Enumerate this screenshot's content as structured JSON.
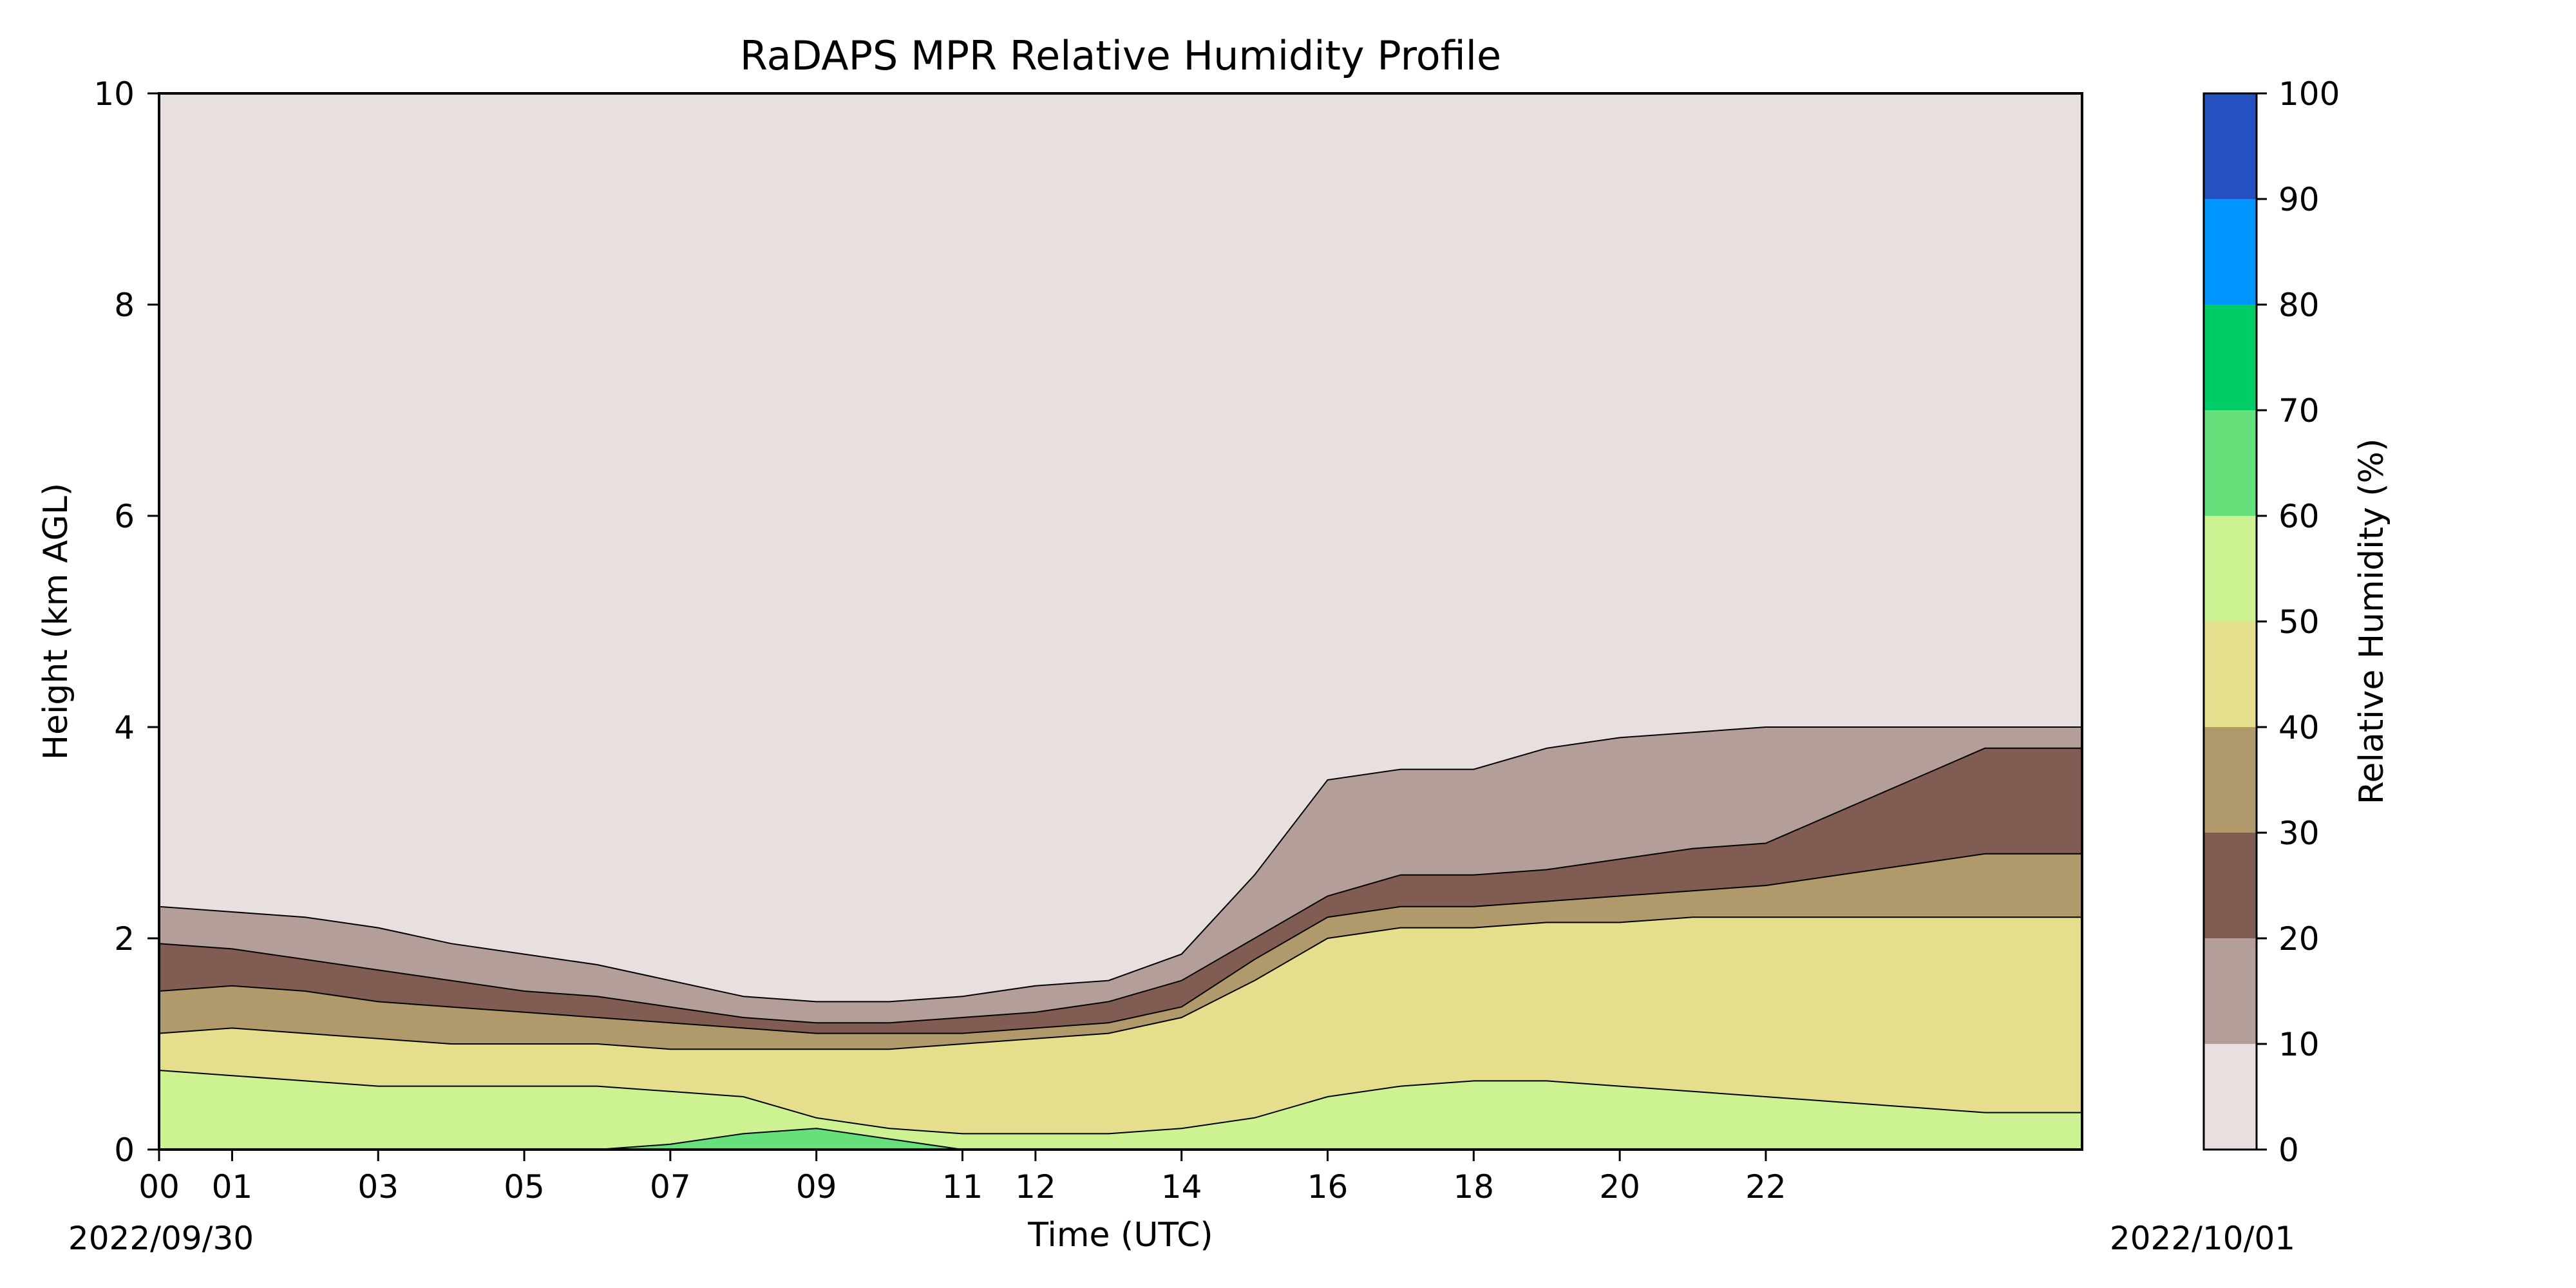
{
  "chart_data": {
    "type": "heatmap",
    "title": "RaDAPS MPR Relative Humidity Profile",
    "xlabel": "Time (UTC)",
    "ylabel": "Height (km AGL)",
    "x_tick_labels": [
      "00",
      "01",
      "03",
      "05",
      "07",
      "09",
      "11",
      "12",
      "14",
      "16",
      "18",
      "20",
      "22"
    ],
    "x_tick_hours": [
      0,
      1,
      3,
      5,
      7,
      9,
      11,
      12,
      14,
      16,
      18,
      20,
      22
    ],
    "xlim_hours": [
      0,
      26.33
    ],
    "y_tick_labels": [
      "0",
      "2",
      "4",
      "6",
      "8",
      "10"
    ],
    "ylim": [
      0,
      10
    ],
    "start_date": "2022/09/30",
    "end_date": "2022/10/01",
    "colorbar": {
      "label": "Relative Humidity (%)",
      "levels": [
        0,
        10,
        20,
        30,
        40,
        50,
        60,
        70,
        80,
        90,
        100
      ],
      "colors": [
        "#e7e0df",
        "#b39e99",
        "#805c52",
        "#b09a6c",
        "#e4de8d",
        "#ccf291",
        "#66e07a",
        "#00cc66",
        "#0096ff",
        "#2450c0"
      ]
    },
    "boundary_x_hours": [
      0,
      1,
      2,
      3,
      4,
      5,
      6,
      7,
      8,
      9,
      10,
      11,
      12,
      13,
      14,
      15,
      16,
      17,
      18,
      19,
      20,
      21,
      22,
      23,
      24,
      25,
      26.33
    ],
    "contour_boundaries_km": [
      {
        "level": 10,
        "y": [
          2.3,
          2.25,
          2.2,
          2.1,
          1.95,
          1.85,
          1.75,
          1.6,
          1.45,
          1.4,
          1.4,
          1.45,
          1.55,
          1.6,
          1.85,
          2.6,
          3.5,
          3.6,
          3.6,
          3.8,
          3.9,
          3.95,
          4.0,
          4.0,
          4.0,
          4.0,
          4.0
        ]
      },
      {
        "level": 20,
        "y": [
          1.95,
          1.9,
          1.8,
          1.7,
          1.6,
          1.5,
          1.45,
          1.35,
          1.25,
          1.2,
          1.2,
          1.25,
          1.3,
          1.4,
          1.6,
          2.0,
          2.4,
          2.6,
          2.6,
          2.65,
          2.75,
          2.85,
          2.9,
          3.2,
          3.5,
          3.8,
          3.8
        ]
      },
      {
        "level": 30,
        "y": [
          1.5,
          1.55,
          1.5,
          1.4,
          1.35,
          1.3,
          1.25,
          1.2,
          1.15,
          1.1,
          1.1,
          1.1,
          1.15,
          1.2,
          1.35,
          1.8,
          2.2,
          2.3,
          2.3,
          2.35,
          2.4,
          2.45,
          2.5,
          2.6,
          2.7,
          2.8,
          2.8
        ]
      },
      {
        "level": 40,
        "y": [
          1.1,
          1.15,
          1.1,
          1.05,
          1.0,
          1.0,
          1.0,
          0.95,
          0.95,
          0.95,
          0.95,
          1.0,
          1.05,
          1.1,
          1.25,
          1.6,
          2.0,
          2.1,
          2.1,
          2.15,
          2.15,
          2.2,
          2.2,
          2.2,
          2.2,
          2.2,
          2.2
        ]
      },
      {
        "level": 50,
        "y": [
          0.75,
          0.7,
          0.65,
          0.6,
          0.6,
          0.6,
          0.6,
          0.55,
          0.5,
          0.3,
          0.2,
          0.15,
          0.15,
          0.15,
          0.2,
          0.3,
          0.5,
          0.6,
          0.65,
          0.65,
          0.6,
          0.55,
          0.5,
          0.45,
          0.4,
          0.35,
          0.35
        ]
      },
      {
        "level": 60,
        "y": [
          0,
          0,
          0,
          0,
          0,
          0,
          0,
          0.05,
          0.15,
          0.2,
          0.1,
          0.0,
          0.0,
          0.0,
          0.0,
          0,
          0,
          0,
          0,
          0,
          0,
          0,
          0,
          0,
          0,
          0,
          0
        ]
      }
    ]
  }
}
